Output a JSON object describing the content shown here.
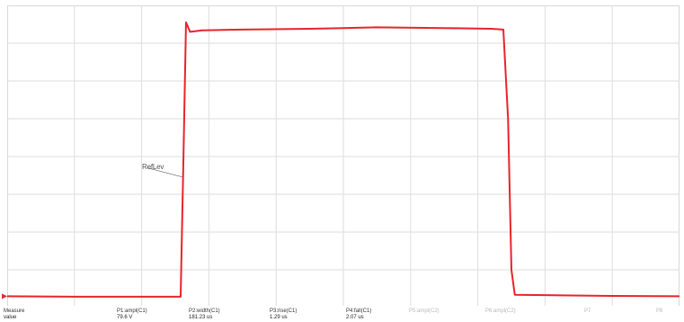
{
  "chart_data": {
    "type": "line",
    "title": "",
    "xlabel": "",
    "ylabel": "",
    "grid": true,
    "x_divisions": 10,
    "y_divisions": 8,
    "xlim": [
      0,
      10
    ],
    "ylim": [
      0,
      8
    ],
    "series": [
      {
        "name": "",
        "color": "#e8242b",
        "x": [
          0,
          1,
          2,
          2.58,
          2.62,
          2.66,
          2.72,
          2.9,
          3.5,
          4.5,
          5.5,
          6.5,
          7.2,
          7.38,
          7.45,
          7.5,
          7.55,
          8,
          9,
          10
        ],
        "y": [
          0.3,
          0.29,
          0.29,
          0.29,
          3.8,
          7.55,
          7.3,
          7.34,
          7.36,
          7.38,
          7.42,
          7.4,
          7.38,
          7.36,
          5.0,
          1.0,
          0.34,
          0.33,
          0.31,
          0.3
        ]
      }
    ]
  },
  "trace_label": "RefLev",
  "measurements": [
    {
      "label": "Measure",
      "value": "value"
    },
    {
      "label": "P1:ampl(C1)",
      "value": "79.6 V"
    },
    {
      "label": "P2:width(C1)",
      "value": "181.23 us"
    },
    {
      "label": "P3:rise(C1)",
      "value": "1.29 us"
    },
    {
      "label": "P4:fall(C1)",
      "value": "2.07 us"
    },
    {
      "label": "P5:ampl(C2)",
      "value": ""
    },
    {
      "label": "P6:ampl(C2)",
      "value": ""
    },
    {
      "label": "P7",
      "value": ""
    },
    {
      "label": "P8",
      "value": ""
    }
  ]
}
